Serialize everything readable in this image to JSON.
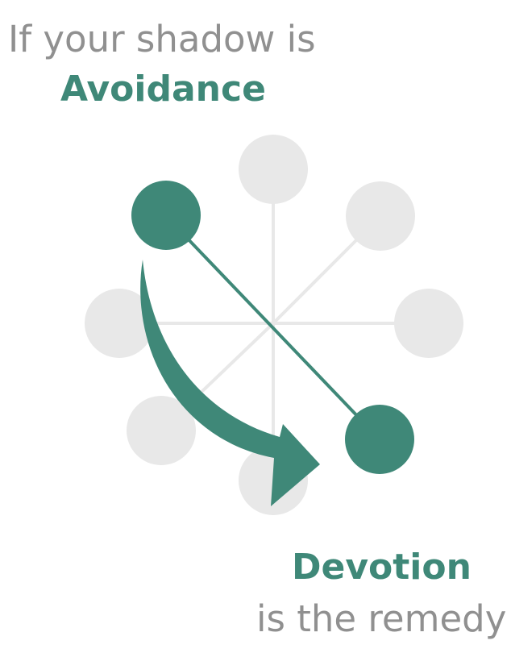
{
  "heading": {
    "intro": "If your shadow is",
    "shadow": "Avoidance"
  },
  "footer": {
    "remedy": "Devotion",
    "outro": "is the remedy"
  },
  "colors": {
    "accent": "#3f8878",
    "node_inactive": "#e8e8e8",
    "spoke": "#e8e8e8",
    "muted_text": "#909090"
  }
}
